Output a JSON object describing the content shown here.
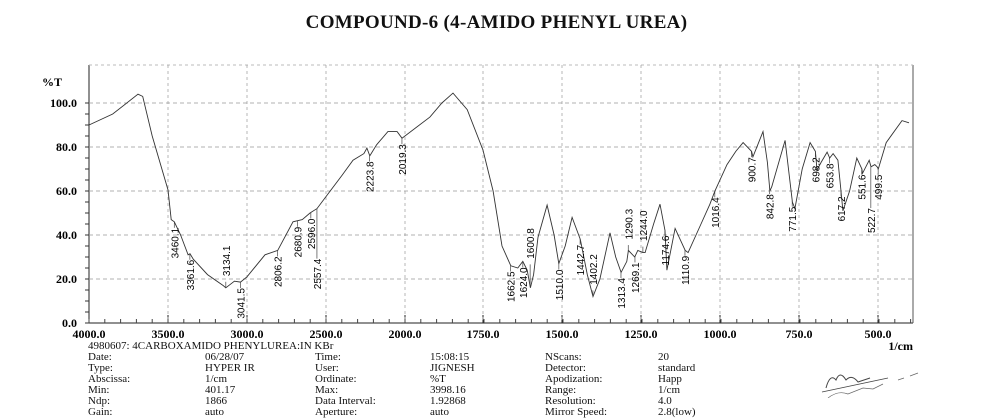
{
  "title": "COMPOUND-6 (4-AMIDO PHENYL UREA)",
  "chart_data": {
    "type": "line",
    "title": "COMPOUND-6 (4-AMIDO PHENYL UREA)",
    "ylabel": "%T",
    "xlabel": "1/cm",
    "xlim": [
      4000,
      400
    ],
    "ylim": [
      0,
      100
    ],
    "x_scale_note": "axis scale changes at 2000.0",
    "grid": true,
    "x_ticks": [
      "4000.0",
      "3500.0",
      "3000.0",
      "2500.0",
      "2000.0",
      "1750.0",
      "1500.0",
      "1250.0",
      "1000.0",
      "750.0",
      "500.0"
    ],
    "y_ticks": [
      "0.0",
      "20.0",
      "40.0",
      "60.0",
      "80.0",
      "100.0"
    ],
    "series": [
      {
        "x": [
          4000,
          3850,
          3690,
          3660,
          3600,
          3500,
          3480,
          3460,
          3420,
          3373,
          3361,
          3340,
          3250,
          3150,
          3134,
          3080,
          3041,
          3000,
          2886,
          2806,
          2709,
          2650,
          2601,
          2557,
          2494,
          2400,
          2329,
          2260,
          2241,
          2223,
          2180,
          2108,
          2050,
          2019,
          1918,
          1880,
          1845,
          1800,
          1750,
          1718,
          1690,
          1662,
          1640,
          1624,
          1610,
          1600,
          1590,
          1576,
          1547,
          1525,
          1510,
          1490,
          1468,
          1442,
          1420,
          1402,
          1380,
          1348,
          1330,
          1313,
          1295,
          1290,
          1270,
          1260,
          1244,
          1237,
          1210,
          1190,
          1174,
          1168,
          1142,
          1110,
          1101,
          1060,
          1032,
          1016,
          978,
          950,
          927,
          900,
          896,
          864,
          850,
          842,
          836,
          794,
          771,
          763,
          740,
          715,
          698,
          693,
          680,
          661,
          653,
          642,
          627,
          617,
          611,
          590,
          567,
          551,
          549,
          528,
          522,
          510,
          503,
          499,
          474,
          424,
          402
        ],
        "y": [
          90,
          95,
          104,
          103,
          85,
          60.5,
          47,
          46,
          40,
          31,
          31.5,
          29,
          22,
          17,
          16,
          19,
          18.6,
          21,
          31,
          33,
          46,
          47,
          50,
          52,
          58,
          67,
          74,
          77,
          79.5,
          76,
          81,
          87,
          87,
          84,
          93.6,
          100,
          104.5,
          97,
          78.6,
          60,
          35,
          26,
          25,
          28,
          24,
          16,
          22,
          39,
          53.6,
          40,
          27,
          35,
          48,
          38,
          22,
          12,
          20,
          41,
          30,
          23,
          28,
          33,
          30,
          33,
          32,
          32,
          45,
          54,
          42,
          24,
          43,
          33,
          32,
          45,
          54,
          60,
          72,
          78,
          82,
          78,
          75.5,
          87,
          73,
          60,
          62,
          83,
          55,
          52,
          70,
          82,
          78,
          69.5,
          73,
          77.7,
          75,
          77,
          74,
          60,
          51,
          60,
          75,
          70,
          68,
          74,
          71,
          72,
          71,
          70,
          82,
          92,
          91
        ]
      }
    ],
    "peak_labels": [
      "3460.1",
      "3361.6",
      "3134.1",
      "3041.5",
      "2806.2",
      "2680.9",
      "2596.0",
      "2557.4",
      "2223.8",
      "2019.3",
      "1662.5",
      "1624.0",
      "1600.8",
      "1510.0",
      "1442.7",
      "1402.2",
      "1313.4",
      "1290.3",
      "1269.1",
      "1244.0",
      "1174.6",
      "1110.9",
      "1016.4",
      "900.7",
      "842.8",
      "771.5",
      "698.2",
      "653.8",
      "617.2",
      "551.6",
      "522.7",
      "499.5"
    ]
  },
  "info": {
    "header": "4980607: 4CARBOXAMIDO PHENYLUREA:IN KBr",
    "rows": [
      [
        "Date:",
        "06/28/07",
        "Time:",
        "15:08:15",
        "NScans:",
        "20"
      ],
      [
        "Type:",
        "HYPER IR",
        "User:",
        "JIGNESH",
        "Detector:",
        "standard"
      ],
      [
        "Abscissa:",
        "1/cm",
        "Ordinate:",
        "%T",
        "Apodization:",
        "Happ"
      ],
      [
        "Min:",
        "401.17",
        "Max:",
        "3998.16",
        "Range:",
        "1/cm"
      ],
      [
        "Ndp:",
        "1866",
        "Data Interval:",
        "1.92868",
        "Resolution:",
        "4.0"
      ],
      [
        "Gain:",
        "auto",
        "Aperture:",
        "auto",
        "Mirror Speed:",
        "2.8(low)"
      ]
    ]
  },
  "colors": {
    "line": "#333333",
    "grid": "#999999",
    "text": "#111111"
  }
}
